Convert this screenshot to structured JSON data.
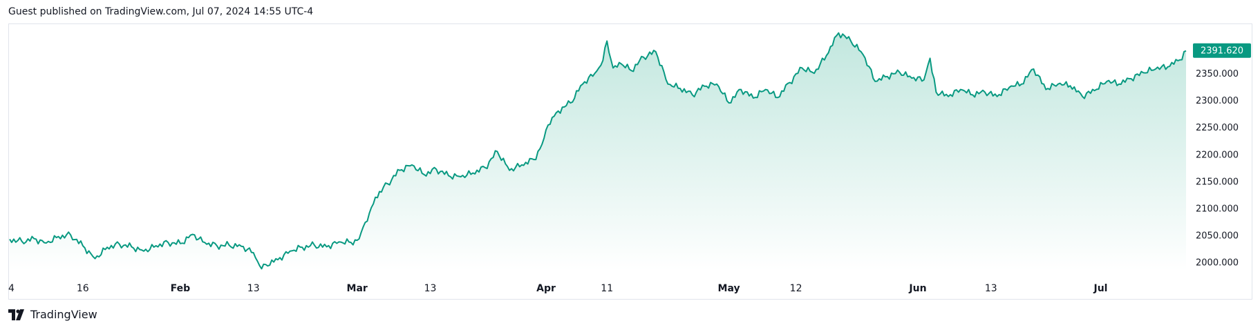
{
  "header": {
    "published": "Guest published on TradingView.com, Jul 07, 2024 14:55 UTC-4"
  },
  "branding": {
    "name": "TradingView"
  },
  "colors": {
    "line": "#089981",
    "fill_top": "#bfe6dd",
    "fill_bottom": "#ffffff",
    "price_tag_bg": "#089981",
    "price_tag_text": "#ffffff"
  },
  "chart_data": {
    "type": "area",
    "last_price": "2391.620",
    "y_ticks": [
      "2000.000",
      "2050.000",
      "2100.000",
      "2150.000",
      "2200.000",
      "2250.000",
      "2300.000",
      "2350.000"
    ],
    "ylim": [
      1985,
      2440
    ],
    "x_ticks": [
      {
        "label": "4",
        "day": 4,
        "bold": false
      },
      {
        "label": "16",
        "day": 16,
        "bold": false
      },
      {
        "label": "Feb",
        "day": 32,
        "bold": true
      },
      {
        "label": "13",
        "day": 44,
        "bold": false
      },
      {
        "label": "Mar",
        "day": 61,
        "bold": true
      },
      {
        "label": "13",
        "day": 73,
        "bold": false
      },
      {
        "label": "Apr",
        "day": 92,
        "bold": true
      },
      {
        "label": "11",
        "day": 102,
        "bold": false
      },
      {
        "label": "May",
        "day": 122,
        "bold": true
      },
      {
        "label": "12",
        "day": 133,
        "bold": false
      },
      {
        "label": "Jun",
        "day": 153,
        "bold": true
      },
      {
        "label": "13",
        "day": 165,
        "bold": false
      },
      {
        "label": "Jul",
        "day": 183,
        "bold": true
      }
    ],
    "xlim": [
      4,
      197
    ],
    "series": [
      {
        "x": [
          4,
          6,
          8,
          10,
          12,
          14,
          16,
          18,
          20,
          22,
          24,
          26,
          28,
          30,
          32,
          34,
          36,
          38,
          40,
          42,
          44,
          45,
          46,
          48,
          50,
          52,
          54,
          56,
          58,
          60,
          61,
          62,
          63,
          64,
          66,
          68,
          70,
          72,
          74,
          76,
          78,
          80,
          82,
          84,
          86,
          88,
          90,
          91,
          92,
          93,
          94,
          96,
          98,
          100,
          101,
          102,
          103,
          104,
          106,
          108,
          110,
          112,
          114,
          116,
          118,
          120,
          122,
          124,
          126,
          128,
          130,
          132,
          134,
          136,
          138,
          140,
          142,
          144,
          146,
          148,
          150,
          152,
          154,
          155,
          156,
          158,
          160,
          162,
          164,
          166,
          168,
          170,
          172,
          174,
          176,
          178,
          180,
          182,
          184,
          186,
          188,
          190,
          192,
          194,
          196,
          197
        ],
        "y": [
          2042,
          2038,
          2043,
          2035,
          2047,
          2050,
          2030,
          2006,
          2027,
          2033,
          2028,
          2020,
          2030,
          2036,
          2034,
          2051,
          2036,
          2030,
          2031,
          2029,
          2017,
          1993,
          1995,
          2004,
          2020,
          2027,
          2031,
          2028,
          2037,
          2036,
          2040,
          2065,
          2090,
          2120,
          2145,
          2170,
          2180,
          2162,
          2172,
          2160,
          2158,
          2165,
          2175,
          2205,
          2170,
          2180,
          2190,
          2210,
          2245,
          2268,
          2280,
          2295,
          2330,
          2350,
          2365,
          2410,
          2360,
          2370,
          2355,
          2380,
          2390,
          2330,
          2322,
          2310,
          2326,
          2330,
          2295,
          2320,
          2304,
          2320,
          2305,
          2333,
          2360,
          2350,
          2383,
          2425,
          2410,
          2385,
          2335,
          2344,
          2352,
          2341,
          2338,
          2378,
          2315,
          2307,
          2320,
          2310,
          2315,
          2307,
          2324,
          2330,
          2358,
          2320,
          2330,
          2327,
          2307,
          2318,
          2335,
          2330,
          2340,
          2351,
          2358,
          2362,
          2375,
          2391.62
        ]
      }
    ]
  }
}
